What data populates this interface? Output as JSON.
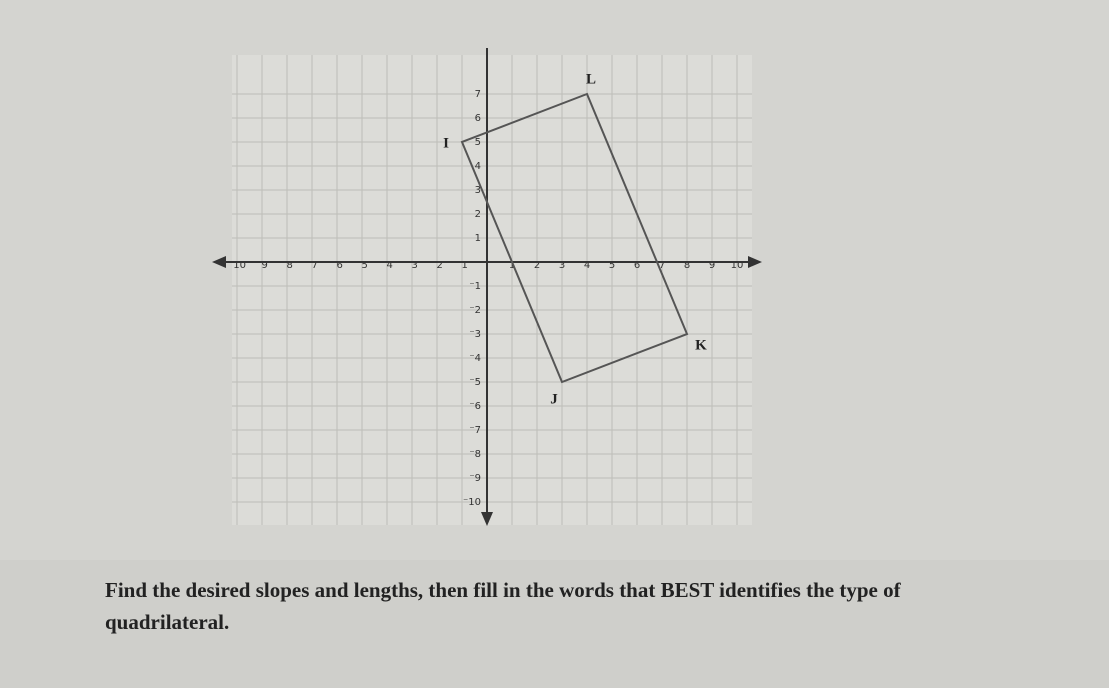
{
  "chart_data": {
    "type": "polygon",
    "points": [
      {
        "label": "I",
        "x": -1,
        "y": 5
      },
      {
        "label": "J",
        "x": 3,
        "y": -5
      },
      {
        "label": "K",
        "x": 8,
        "y": -3
      },
      {
        "label": "L",
        "x": 4,
        "y": 7
      }
    ],
    "xlim": [
      -11,
      11
    ],
    "ylim": [
      -11,
      8
    ],
    "xticks": [
      {
        "value": -10,
        "label": "⁻10"
      },
      {
        "value": -9,
        "label": "⁻9"
      },
      {
        "value": -8,
        "label": "⁻8"
      },
      {
        "value": -7,
        "label": "⁻7"
      },
      {
        "value": -6,
        "label": "⁻6"
      },
      {
        "value": -5,
        "label": "⁻5"
      },
      {
        "value": -4,
        "label": "⁻4"
      },
      {
        "value": -3,
        "label": "⁻3"
      },
      {
        "value": -2,
        "label": "⁻2"
      },
      {
        "value": -1,
        "label": "⁻1"
      },
      1,
      2,
      3,
      4,
      5,
      6,
      7,
      8,
      9,
      10
    ],
    "yticks": [
      {
        "value": -10,
        "label": "⁻10"
      },
      {
        "value": -9,
        "label": "⁻9"
      },
      {
        "value": -8,
        "label": "⁻8"
      },
      {
        "value": -7,
        "label": "⁻7"
      },
      {
        "value": -6,
        "label": "⁻6"
      },
      {
        "value": -5,
        "label": "⁻5"
      },
      {
        "value": -4,
        "label": "⁻4"
      },
      {
        "value": -3,
        "label": "⁻3"
      },
      {
        "value": -2,
        "label": "⁻2"
      },
      {
        "value": -1,
        "label": "⁻1"
      },
      1,
      2,
      3,
      4,
      5,
      6,
      7
    ],
    "grid": true,
    "color": "#555555"
  },
  "question": [
    "Find the desired slopes and lengths, then fill in the words that BEST identifies the type of",
    "quadrilateral."
  ]
}
